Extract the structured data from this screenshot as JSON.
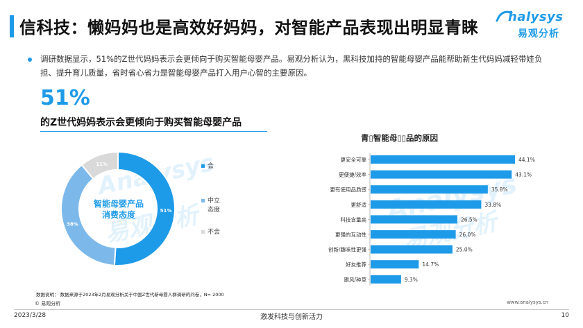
{
  "header": {
    "title": "信科技：懒妈妈也是高效好妈妈，对智能产品表现出明显青睐",
    "logo_en": "nalysys",
    "logo_cn": "易观分析"
  },
  "intro": {
    "text": "调研数据显示，51%的Z世代妈妈表示会更倾向于购买智能母婴产品。易观分析认为，黑科技加持的智能母婴产品能帮助新生代妈妈减轻带娃负担、提升育儿质量，省时省心省力是智能母婴产品打入用户心智的主要原因。"
  },
  "highlight": {
    "percent": "51%",
    "subtitle": "的Z世代妈妈表示会更倾向于购买智能母婴产品"
  },
  "colors": {
    "accent": "#1e9be8",
    "mid": "#7cb9ea",
    "gray": "#d9d9d9"
  },
  "chart_data": [
    {
      "type": "pie",
      "title": "",
      "center_label": [
        "智能母婴产品",
        "消费态度"
      ],
      "slices": [
        {
          "name": "会",
          "value": 51,
          "label": "51%",
          "color": "#1e9be8"
        },
        {
          "name": "中立态度",
          "value": 38,
          "label": "38%",
          "color": "#7cb9ea"
        },
        {
          "name": "不会",
          "value": 11,
          "label": "11%",
          "color": "#d9d9d9"
        }
      ],
      "legend_position": "right"
    },
    {
      "type": "bar",
      "orientation": "horizontal",
      "title": "青▯智能母▯▯品的原因",
      "categories": [
        "更安全可靠",
        "更便捷/效率",
        "更有使用品质感",
        "更舒适",
        "科技含量高",
        "更强的互动性",
        "创新/趣味性更强",
        "好友推荐",
        "跟风/种草"
      ],
      "values": [
        44.1,
        43.1,
        35.8,
        33.8,
        26.5,
        26.0,
        25.0,
        14.7,
        9.3
      ],
      "value_labels": [
        "44.1%",
        "43.1%",
        "35.8%",
        "33.8%",
        "26.5%",
        "26.0%",
        "25.0%",
        "14.7%",
        "9.3%"
      ],
      "xlim": [
        0,
        50
      ],
      "grid": false
    }
  ],
  "footer": {
    "source": "数据说明： 数据来源于2023年2月易观分析关于中国Z世代新母婴人群调研的问卷，N= 2000",
    "copyright": "© 易观分析",
    "website": "www.analysys.cn",
    "date": "2023/3/28",
    "center": "激发科技与创新活力",
    "page": "10"
  }
}
